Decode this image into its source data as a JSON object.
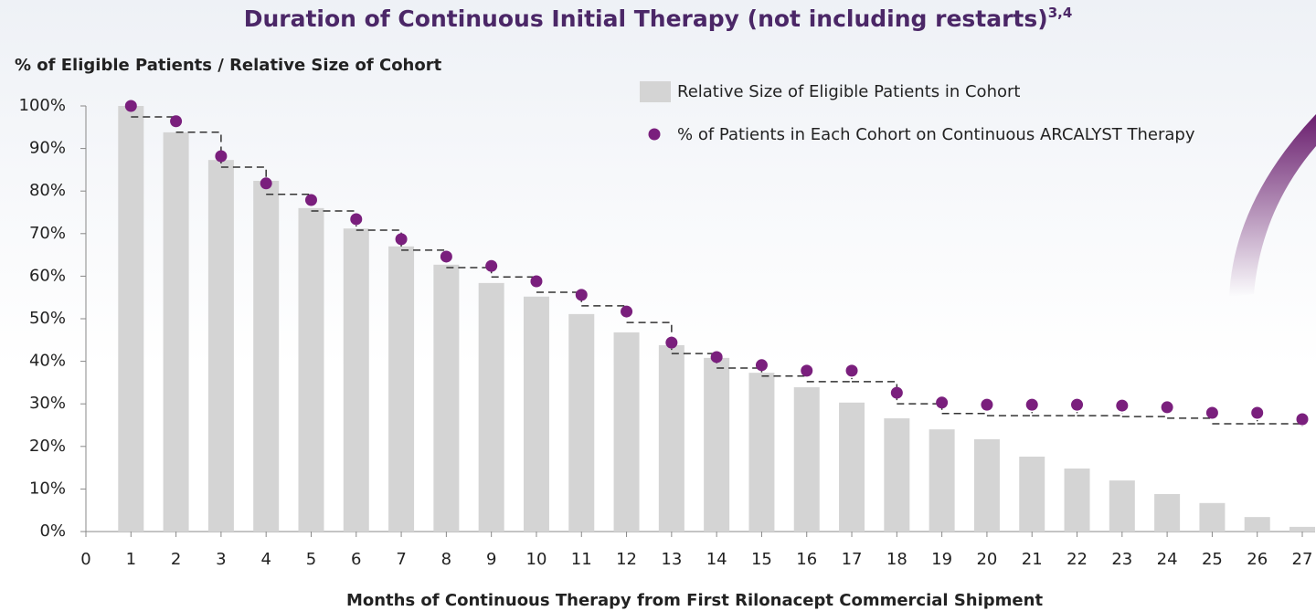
{
  "chart_data": {
    "type": "bar_dot",
    "title": "Duration of Continuous Initial Therapy (not including restarts)",
    "title_superscript": "3,4",
    "y_label": "% of Eligible Patients / Relative Size of Cohort",
    "x_label": "Months of Continuous Therapy from First Rilonacept Commercial Shipment",
    "x": [
      1,
      2,
      3,
      4,
      5,
      6,
      7,
      8,
      9,
      10,
      11,
      12,
      13,
      14,
      15,
      16,
      17,
      18,
      19,
      20,
      21,
      22,
      23,
      24,
      25,
      26,
      27
    ],
    "series": [
      {
        "name": "Relative Size of Eligible Patients in Cohort",
        "color": "#d4d4d4",
        "values": [
          100,
          93.8,
          87.3,
          82.4,
          76,
          71.2,
          67,
          62.7,
          58.4,
          55.2,
          51.1,
          46.8,
          43.8,
          40.8,
          37.3,
          33.9,
          30.3,
          26.6,
          24,
          21.7,
          17.6,
          14.8,
          12,
          8.8,
          6.7,
          3.4,
          1.1
        ]
      },
      {
        "name": "% of Patients in Each Cohort on Continuous ARCALYST Therapy",
        "color": "#7a1f7d",
        "values": [
          100,
          96.4,
          88.2,
          81.8,
          77.9,
          73.4,
          68.7,
          64.6,
          62.4,
          58.8,
          55.6,
          51.7,
          44.4,
          41,
          39.1,
          37.8,
          37.8,
          32.6,
          30.3,
          29.8,
          29.8,
          29.8,
          29.6,
          29.2,
          27.9,
          27.9,
          26.4
        ]
      }
    ],
    "xlim": [
      0,
      27
    ],
    "xticks": [
      0,
      1,
      2,
      3,
      4,
      5,
      6,
      7,
      8,
      9,
      10,
      11,
      12,
      13,
      14,
      15,
      16,
      17,
      18,
      19,
      20,
      21,
      22,
      23,
      24,
      25,
      26,
      27
    ],
    "ylim": [
      0,
      100
    ],
    "yticks": [
      {
        "value": 0,
        "label": "0%"
      },
      {
        "value": 10,
        "label": "10%"
      },
      {
        "value": 20,
        "label": "20%"
      },
      {
        "value": 30,
        "label": "30%"
      },
      {
        "value": 40,
        "label": "40%"
      },
      {
        "value": 50,
        "label": "50%"
      },
      {
        "value": 60,
        "label": "60%"
      },
      {
        "value": 70,
        "label": "70%"
      },
      {
        "value": 80,
        "label": "80%"
      },
      {
        "value": 90,
        "label": "90%"
      },
      {
        "value": 100,
        "label": "100%"
      }
    ]
  }
}
